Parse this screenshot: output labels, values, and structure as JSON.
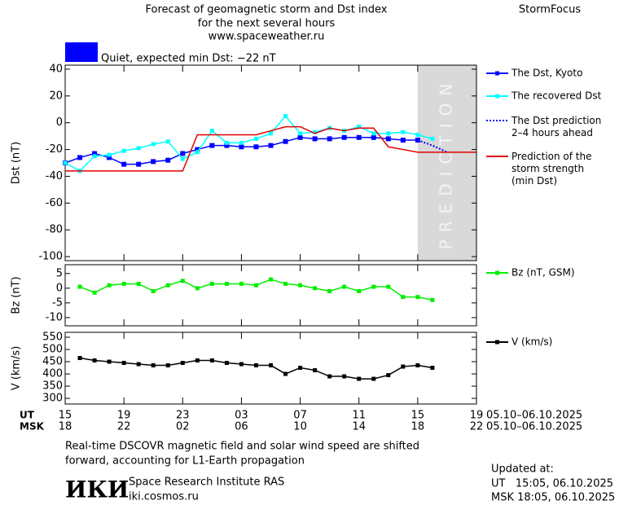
{
  "header": {
    "title": [
      "Forecast of geomagnetic storm and Dst index",
      "for the next several hours",
      "www.spaceweather.ru"
    ],
    "brand": "StormFocus",
    "status": "Quiet, expected min Dst: −22 nT",
    "status_color": "#0000ff"
  },
  "chart_data": [
    {
      "type": "line",
      "ylabel": "Dst (nT)",
      "xlim": [
        0,
        28
      ],
      "ylim": [
        -103,
        43
      ],
      "yticks": [
        40,
        20,
        0,
        -20,
        -40,
        -60,
        -80,
        -100
      ],
      "prediction_zone": {
        "x": [
          24,
          28
        ],
        "label": "PREDICTION"
      },
      "series": [
        {
          "name": "The Dst, Kyoto",
          "color": "#0000ff",
          "marker": "square",
          "x": [
            0,
            1,
            2,
            3,
            4,
            5,
            6,
            7,
            8,
            9,
            10,
            11,
            12,
            13,
            14,
            15,
            16,
            17,
            18,
            19,
            20,
            21,
            22,
            23,
            24
          ],
          "values": [
            -30,
            -26,
            -23,
            -26,
            -31,
            -31,
            -29,
            -28,
            -23,
            -20,
            -17,
            -17,
            -18,
            -18,
            -17,
            -14,
            -11,
            -12,
            -12,
            -11,
            -11,
            -11,
            -12,
            -13,
            -13
          ]
        },
        {
          "name": "The recovered Dst",
          "color": "#00ffff",
          "marker": "square",
          "x": [
            0,
            1,
            2,
            3,
            4,
            5,
            6,
            7,
            8,
            9,
            10,
            11,
            12,
            13,
            14,
            15,
            16,
            17,
            18,
            19,
            20,
            21,
            22,
            23,
            24,
            25
          ],
          "values": [
            -30,
            -36,
            -25,
            -24,
            -21,
            -19,
            -16,
            -14,
            -27,
            -22,
            -6,
            -15,
            -15,
            -12,
            -8,
            5,
            -8,
            -7,
            -4,
            -6,
            -3,
            -8,
            -8,
            -7,
            -9,
            -12
          ]
        },
        {
          "name": "The Dst prediction\n2–4 hours ahead",
          "color": "#0000ff",
          "style": "dotted",
          "x": [
            24,
            25,
            26
          ],
          "values": [
            -13,
            -17,
            -22
          ]
        },
        {
          "name": "Prediction of the\nstorm strength\n(min Dst)",
          "color": "#e00000",
          "x": [
            0,
            8,
            9,
            13,
            14,
            15,
            16,
            17,
            18,
            19,
            20,
            21,
            22,
            23,
            24,
            28
          ],
          "values": [
            -36,
            -36,
            -9,
            -9,
            -6,
            -3,
            -3,
            -8,
            -4,
            -6,
            -4,
            -4,
            -18,
            -20,
            -22,
            -22
          ]
        }
      ]
    },
    {
      "type": "line",
      "ylabel": "Bz (nT)",
      "xlim": [
        0,
        28
      ],
      "ylim": [
        -12.8,
        8
      ],
      "yticks": [
        5,
        0,
        -5,
        -10
      ],
      "series": [
        {
          "name": "Bz (nT, GSM)",
          "color": "#00ee00",
          "marker": "square",
          "x": [
            1,
            2,
            3,
            4,
            5,
            6,
            7,
            8,
            9,
            10,
            11,
            12,
            13,
            14,
            15,
            16,
            17,
            18,
            19,
            20,
            21,
            22,
            23,
            24,
            25
          ],
          "values": [
            0.5,
            -1.5,
            1,
            1.5,
            1.5,
            -1,
            1,
            2.5,
            0,
            1.5,
            1.5,
            1.5,
            1,
            3,
            1.5,
            1,
            0,
            -1,
            0.5,
            -1,
            0.5,
            0.5,
            -3,
            -3,
            -4
          ]
        }
      ]
    },
    {
      "type": "line",
      "ylabel": "V (km/s)",
      "xlim": [
        0,
        28
      ],
      "ylim": [
        277,
        570
      ],
      "yticks": [
        550,
        500,
        450,
        400,
        350,
        300
      ],
      "series": [
        {
          "name": "V (km/s)",
          "color": "#000000",
          "marker": "square",
          "x": [
            1,
            2,
            3,
            4,
            5,
            6,
            7,
            8,
            9,
            10,
            11,
            12,
            13,
            14,
            15,
            16,
            17,
            18,
            19,
            20,
            21,
            22,
            23,
            24,
            25
          ],
          "values": [
            465,
            455,
            450,
            445,
            440,
            435,
            435,
            445,
            455,
            455,
            445,
            440,
            435,
            435,
            400,
            425,
            415,
            390,
            390,
            380,
            380,
            395,
            430,
            435,
            425
          ]
        }
      ],
      "xticks": [
        {
          "value": 0,
          "label": "15"
        },
        {
          "value": 4,
          "label": "19"
        },
        {
          "value": 8,
          "label": "23"
        },
        {
          "value": 12,
          "label": "03"
        },
        {
          "value": 16,
          "label": "07"
        },
        {
          "value": 20,
          "label": "11"
        },
        {
          "value": 24,
          "label": "15"
        },
        {
          "value": 28,
          "label": "19"
        }
      ],
      "xticks_msk": [
        {
          "value": 0,
          "label": "18"
        },
        {
          "value": 4,
          "label": "22"
        },
        {
          "value": 8,
          "label": "02"
        },
        {
          "value": 12,
          "label": "06"
        },
        {
          "value": 16,
          "label": "10"
        },
        {
          "value": 20,
          "label": "14"
        },
        {
          "value": 24,
          "label": "18"
        },
        {
          "value": 28,
          "label": "22"
        }
      ],
      "row_labels": [
        "UT",
        "MSK"
      ],
      "date_range": [
        "05.10–06.10.2025",
        "05.10–06.10.2025"
      ]
    }
  ],
  "footer": {
    "note": [
      "Real-time DSCOVR magnetic field and solar wind speed are shifted",
      "forward, accounting for L1-Earth propagation"
    ],
    "logo": "ИКИ",
    "institute": "Space Research Institute RAS",
    "site": "iki.cosmos.ru",
    "updated": [
      "Updated at:",
      "UT   15:05, 06.10.2025",
      "MSK 18:05, 06.10.2025"
    ]
  }
}
